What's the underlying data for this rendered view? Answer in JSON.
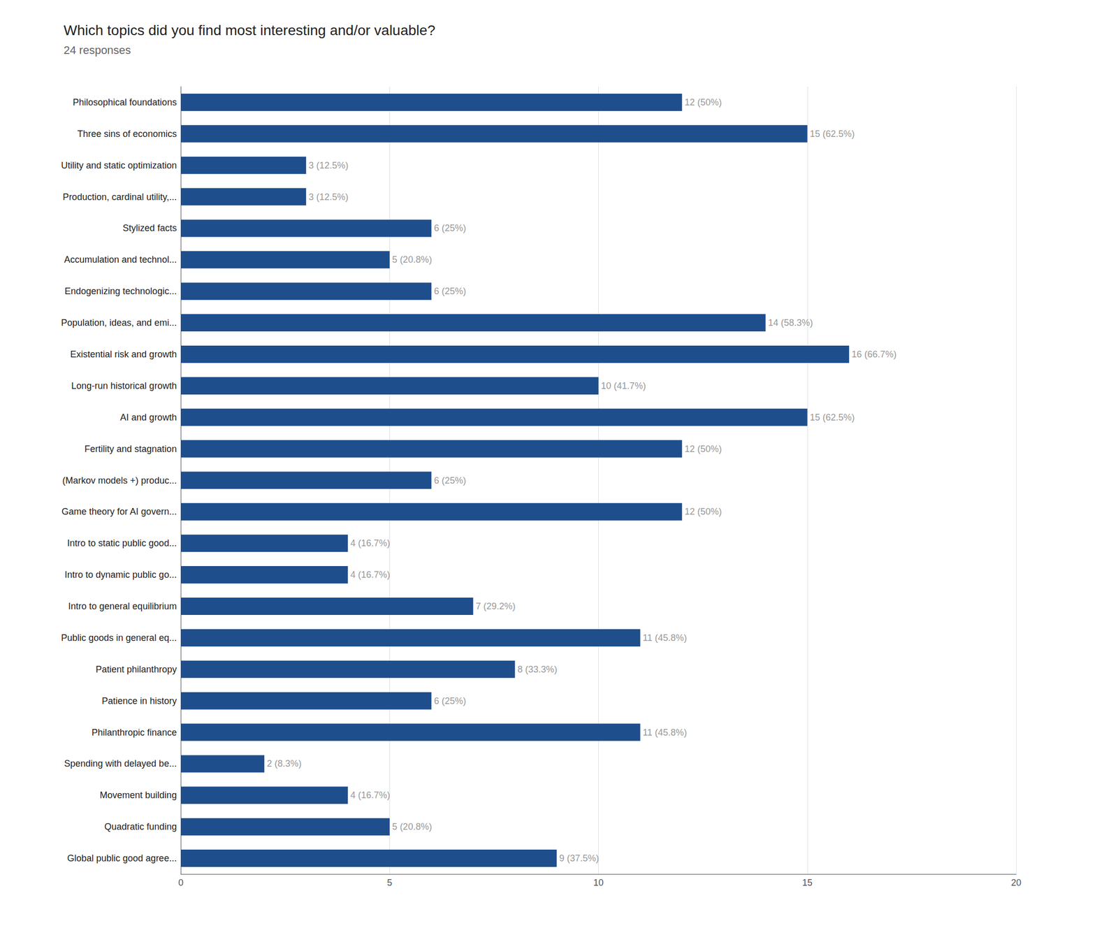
{
  "chart_data": {
    "type": "bar",
    "orientation": "horizontal",
    "title": "Which topics did you find most interesting and/or valuable?",
    "subtitle": "24 responses",
    "categories": [
      "Philosophical foundations",
      "Three sins of economics",
      "Utility and static optimization",
      "Production, cardinal utility,...",
      "Stylized facts",
      "Accumulation and technol...",
      "Endogenizing technologic...",
      "Population, ideas, and emi...",
      "Existential risk and growth",
      "Long-run historical growth",
      "AI and growth",
      "Fertility and stagnation",
      "(Markov models +) produc...",
      "Game theory for AI govern...",
      "Intro to static public good...",
      "Intro to dynamic public go...",
      "Intro to general equilibrium",
      "Public goods in general eq...",
      "Patient philanthropy",
      "Patience in history",
      "Philanthropic finance",
      "Spending with delayed be...",
      "Movement building",
      "Quadratic funding",
      "Global public good agree..."
    ],
    "values": [
      12,
      15,
      3,
      3,
      6,
      5,
      6,
      14,
      16,
      10,
      15,
      12,
      6,
      12,
      4,
      4,
      7,
      11,
      8,
      6,
      11,
      2,
      4,
      5,
      9
    ],
    "value_labels": [
      "12 (50%)",
      "15 (62.5%)",
      "3 (12.5%)",
      "3 (12.5%)",
      "6 (25%)",
      "5 (20.8%)",
      "6 (25%)",
      "14 (58.3%)",
      "16 (66.7%)",
      "10 (41.7%)",
      "15 (62.5%)",
      "12 (50%)",
      "6 (25%)",
      "12 (50%)",
      "4 (16.7%)",
      "4 (16.7%)",
      "7 (29.2%)",
      "11 (45.8%)",
      "8 (33.3%)",
      "6 (25%)",
      "11 (45.8%)",
      "2 (8.3%)",
      "4 (16.7%)",
      "5 (20.8%)",
      "9 (37.5%)"
    ],
    "color": "#1F4E8C",
    "xlim": [
      0,
      20
    ],
    "xticks": [
      0,
      5,
      10,
      15,
      20
    ],
    "grid": true,
    "data_labels": true
  }
}
